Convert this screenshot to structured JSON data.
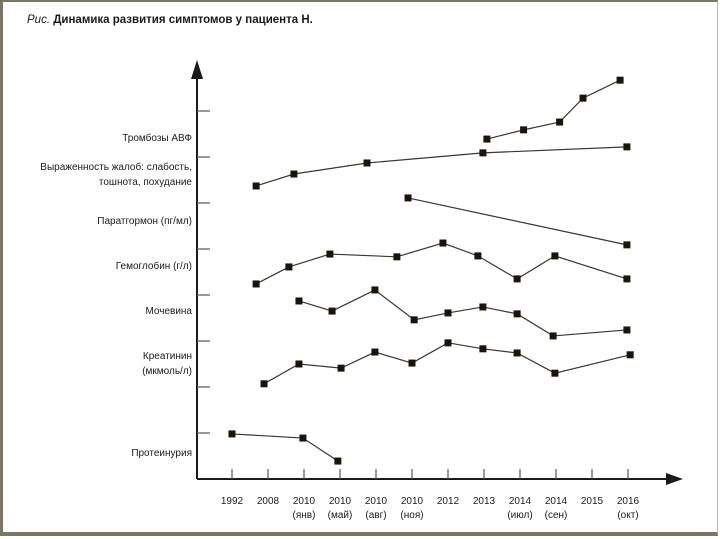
{
  "chart_data": {
    "type": "line",
    "title_prefix": "Рис.",
    "title": "Динамика развития симптомов у пациента Н.",
    "xlabel": "",
    "ylabel": "",
    "x_categories": [
      {
        "year": "1992",
        "sub": ""
      },
      {
        "year": "2008",
        "sub": ""
      },
      {
        "year": "2010",
        "sub": "(янв)"
      },
      {
        "year": "2010",
        "sub": "(май)"
      },
      {
        "year": "2010",
        "sub": "(авг)"
      },
      {
        "year": "2010",
        "sub": "(ноя)"
      },
      {
        "year": "2012",
        "sub": ""
      },
      {
        "year": "2013",
        "sub": ""
      },
      {
        "year": "2014",
        "sub": "(июл)"
      },
      {
        "year": "2014",
        "sub": "(сен)"
      },
      {
        "year": "2015",
        "sub": ""
      },
      {
        "year": "2016",
        "sub": "(окт)"
      }
    ],
    "x_unit_note": "x is position in category-index units (0 = 1992 ... 11 = 2016 окт); y is relative level in tick units",
    "y_ticks": 8,
    "ylim": [
      0,
      9
    ],
    "grid": false,
    "series": [
      {
        "name": "Тромбозы АВФ",
        "label_y": 7.4,
        "x": [
          7.08,
          8.1,
          9.1,
          9.75,
          10.78
        ],
        "y": [
          7.39,
          7.59,
          7.76,
          8.28,
          8.67
        ]
      },
      {
        "name": "Выраженность жалоб: слабость,",
        "name2": "тошнота, похудание",
        "label_y": 6.6,
        "x": [
          0.67,
          1.72,
          3.75,
          6.97,
          10.97
        ],
        "y": [
          6.37,
          6.63,
          6.87,
          7.09,
          7.22
        ]
      },
      {
        "name": "Паратгормон (пг/мл)",
        "label_y": 5.6,
        "x": [
          4.89,
          10.97
        ],
        "y": [
          6.11,
          5.09
        ]
      },
      {
        "name": "Гемоглобин (г/л)",
        "label_y": 4.63,
        "x": [
          0.67,
          1.58,
          2.72,
          4.58,
          5.86,
          6.83,
          7.92,
          8.97,
          10.97
        ],
        "y": [
          4.24,
          4.61,
          4.89,
          4.83,
          5.13,
          4.85,
          4.35,
          4.85,
          4.35
        ]
      },
      {
        "name": "Мочевина",
        "label_y": 3.65,
        "x": [
          1.86,
          2.78,
          3.97,
          5.06,
          6.0,
          6.97,
          7.92,
          8.92,
          10.97
        ],
        "y": [
          3.87,
          3.65,
          4.11,
          3.46,
          3.61,
          3.74,
          3.59,
          3.11,
          3.24
        ]
      },
      {
        "name": "Креатинин",
        "name2": "(мкмоль/л)",
        "label_y": 2.5,
        "x": [
          0.89,
          1.86,
          3.03,
          3.97,
          5.0,
          6.0,
          6.97,
          7.92,
          8.97,
          11.06
        ],
        "y": [
          2.07,
          2.5,
          2.41,
          2.76,
          2.52,
          2.96,
          2.83,
          2.74,
          2.3,
          2.7
        ]
      },
      {
        "name": "Протеинурия",
        "label_y": 0.56,
        "x": [
          0.0,
          1.97,
          2.94
        ],
        "y": [
          0.98,
          0.89,
          0.39
        ]
      }
    ],
    "colors": {
      "line": "#3a3630",
      "marker": "#1a140c",
      "axis": "#1a1a1a"
    }
  }
}
